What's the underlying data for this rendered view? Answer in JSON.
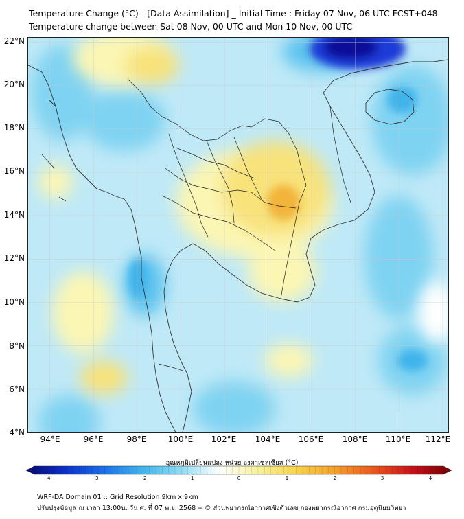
{
  "header": {
    "title_line1": "Temperature Change (°C) - [Data Assimilation] _ Initial Time : Friday 07 Nov, 06 UTC FCST+048",
    "title_line2": "Temperature change between Sat 08 Nov, 00 UTC and Mon 10 Nov, 00 UTC"
  },
  "map": {
    "lat_labels": [
      "22°N",
      "20°N",
      "18°N",
      "16°N",
      "14°N",
      "12°N",
      "10°N",
      "8°N",
      "6°N",
      "4°N"
    ],
    "lon_labels": [
      "94°E",
      "96°E",
      "98°E",
      "100°E",
      "102°E",
      "104°E",
      "106°E",
      "108°E",
      "110°E",
      "112°E"
    ],
    "extent": {
      "lon_min": 93,
      "lon_max": 112.3,
      "lat_min": 4,
      "lat_max": 22.2
    },
    "field_colors": {
      "background": "#bfe9f7",
      "warm_light": "#fbf6b4",
      "warm": "#f8e27a",
      "warm_strong": "#f2b43a",
      "cool": "#7fd3f2",
      "cool_strong": "#3fb4ec",
      "cold": "#1f3ad8",
      "coldest": "#0b0f9a"
    }
  },
  "colorbar": {
    "title": "อุณหภูมิเปลี่ยนแปลง หน่วย องศาเซลเซียส (°C)",
    "ticks": [
      "-4",
      "-3",
      "-2",
      "-1",
      "0",
      "1",
      "2",
      "3",
      "4"
    ],
    "range": [
      -4,
      4
    ],
    "stops": [
      "#08086e",
      "#0b2fc9",
      "#1c6fe8",
      "#3fb4ec",
      "#8fdcf4",
      "#ffffff",
      "#f8f29a",
      "#f8d24a",
      "#f3a02c",
      "#e8561e",
      "#c8101a",
      "#700000"
    ]
  },
  "footer": {
    "line1": "WRF-DA Domain 01 :: Grid Resolution 9km x 9km",
    "line2": "ปรับปรุงข้อมูล ณ เวลา 13:00น. วัน ศ. ที่ 07 พ.ย. 2568 -- © ส่วนพยากรณ์อากาศเชิงตัวเลข กองพยากรณ์อากาศ กรมอุตุนิยมวิทยา"
  }
}
